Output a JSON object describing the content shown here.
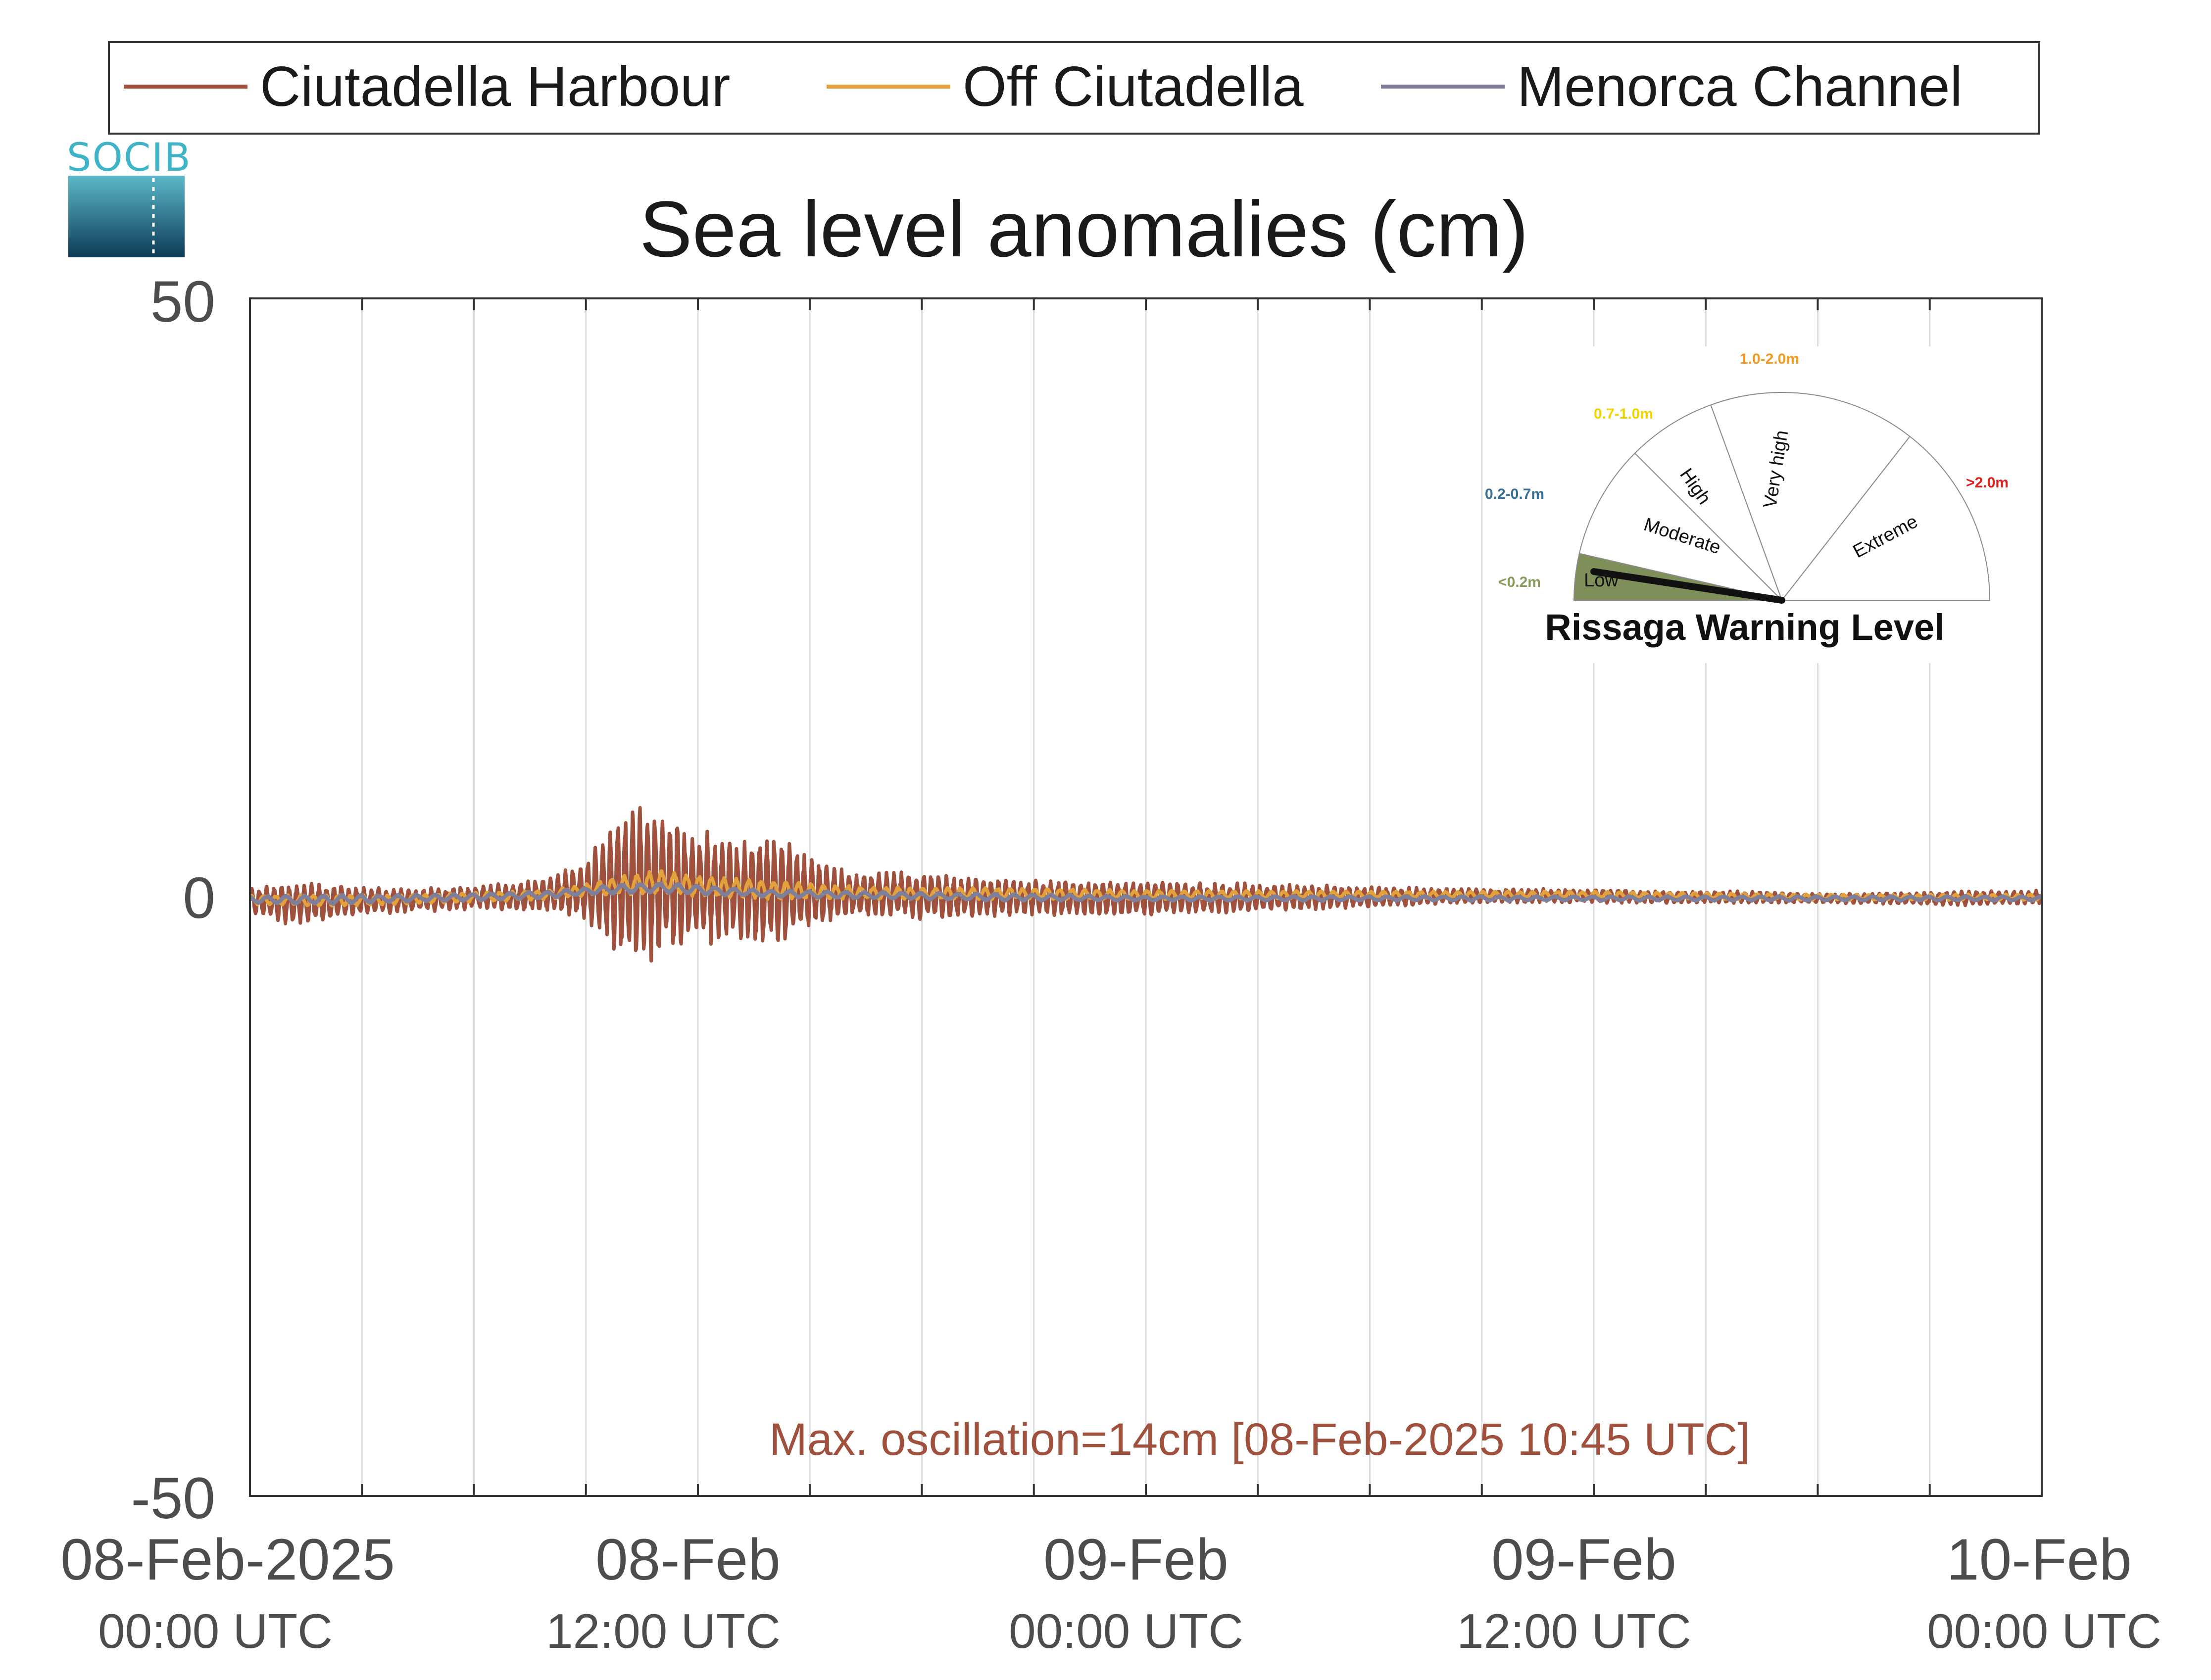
{
  "chart_data": {
    "type": "line",
    "title": "Sea level anomalies (cm)",
    "ylim": [
      -50,
      50
    ],
    "y_ticks": [
      "50",
      "0",
      "-50"
    ],
    "x_range_hours": [
      0,
      48
    ],
    "x_ticks": [
      {
        "date": "08-Feb-2025",
        "time": "00:00 UTC"
      },
      {
        "date": "08-Feb",
        "time": "12:00 UTC"
      },
      {
        "date": "09-Feb",
        "time": "00:00 UTC"
      },
      {
        "date": "09-Feb",
        "time": "12:00 UTC"
      },
      {
        "date": "10-Feb",
        "time": "00:00 UTC"
      }
    ],
    "grid": "vertical every 3 hours",
    "legend_position": "top",
    "series": [
      {
        "name": "Ciutadella Harbour",
        "color": "#a0513e",
        "envelope": {
          "hours": [
            0,
            1,
            2,
            3,
            4,
            5,
            6,
            7,
            8,
            9,
            9.5,
            10,
            10.75,
            11,
            12,
            13,
            14,
            14.5,
            15,
            16,
            17,
            18,
            19,
            20,
            21,
            22,
            24,
            26,
            28,
            30,
            32,
            34,
            36,
            38,
            40,
            42,
            44,
            46,
            48
          ],
          "amplitude": [
            1.0,
            1.8,
            1.6,
            1.2,
            1.0,
            1.0,
            1.0,
            1.2,
            1.5,
            2.5,
            4.5,
            6.0,
            7.0,
            6.0,
            5.0,
            4.5,
            5.0,
            4.5,
            3.0,
            2.0,
            2.0,
            2.0,
            1.8,
            1.6,
            1.5,
            1.5,
            1.5,
            1.3,
            1.1,
            0.9,
            0.7,
            0.6,
            0.6,
            0.5,
            0.5,
            0.4,
            0.5,
            0.6,
            0.6
          ],
          "offset": [
            -0.3,
            -0.5,
            -0.4,
            -0.3,
            -0.3,
            -0.2,
            0,
            0,
            0.2,
            0.5,
            0.8,
            1.0,
            1.2,
            1.0,
            0.8,
            0.6,
            0.5,
            0.4,
            0.3,
            0.2,
            0.2,
            0.1,
            0,
            0,
            0,
            -0.1,
            -0.1,
            -0.1,
            0,
            0,
            0.1,
            0.1,
            0.1,
            0,
            0,
            -0.1,
            -0.1,
            -0.1,
            0
          ]
        },
        "oscillation_period_min": 12
      },
      {
        "name": "Off Ciutadella",
        "color": "#e2a13a",
        "envelope": {
          "hours": [
            0,
            2,
            4,
            6,
            8,
            9,
            10,
            11,
            12,
            14,
            16,
            18,
            20,
            24,
            30,
            36,
            42,
            48
          ],
          "amplitude": [
            0.4,
            0.5,
            0.4,
            0.4,
            0.4,
            0.5,
            0.8,
            1.0,
            0.9,
            0.8,
            0.6,
            0.5,
            0.5,
            0.4,
            0.3,
            0.3,
            0.25,
            0.25
          ],
          "offset": [
            -0.2,
            -0.3,
            -0.2,
            0,
            0.2,
            0.6,
            1.0,
            1.3,
            0.9,
            0.6,
            0.4,
            0.3,
            0.3,
            0.2,
            0.2,
            0.2,
            0,
            0
          ]
        },
        "oscillation_period_min": 20
      },
      {
        "name": "Menorca Channel",
        "color": "#7e7f9a",
        "envelope": {
          "hours": [
            0,
            2,
            4,
            6,
            8,
            9,
            10,
            11,
            12,
            14,
            16,
            18,
            20,
            24,
            30,
            36,
            42,
            48
          ],
          "amplitude": [
            0.3,
            0.4,
            0.3,
            0.3,
            0.3,
            0.3,
            0.4,
            0.4,
            0.4,
            0.3,
            0.3,
            0.3,
            0.3,
            0.2,
            0.2,
            0.2,
            0.2,
            0.2
          ],
          "offset": [
            -0.2,
            -0.2,
            -0.1,
            0,
            0.2,
            0.5,
            0.7,
            0.8,
            0.6,
            0.3,
            0.2,
            0.1,
            0,
            -0.1,
            -0.1,
            -0.1,
            -0.1,
            -0.1
          ]
        },
        "oscillation_period_min": 30
      }
    ],
    "annotation": "Max. oscillation=14cm [08-Feb-2025 10:45 UTC]",
    "annotation_color": "#a0513e"
  },
  "logo": {
    "text": "SOCIB"
  },
  "gauge": {
    "title": "Rissaga Warning Level",
    "current_level": "Low",
    "categories": [
      {
        "label": "Low",
        "range": "<0.2m",
        "range_color": "#8a9a5b",
        "fill": "#7f8f5a"
      },
      {
        "label": "Moderate",
        "range": "0.2-0.7m",
        "range_color": "#3a6f96",
        "fill": "#ffffff"
      },
      {
        "label": "High",
        "range": "0.7-1.0m",
        "range_color": "#f0d400",
        "fill": "#ffffff"
      },
      {
        "label": "Very high",
        "range": "1.0-2.0m",
        "range_color": "#f29a1f",
        "fill": "#ffffff"
      },
      {
        "label": "Extreme",
        "range": ">2.0m",
        "range_color": "#e0201b",
        "fill": "#ffffff"
      }
    ]
  }
}
